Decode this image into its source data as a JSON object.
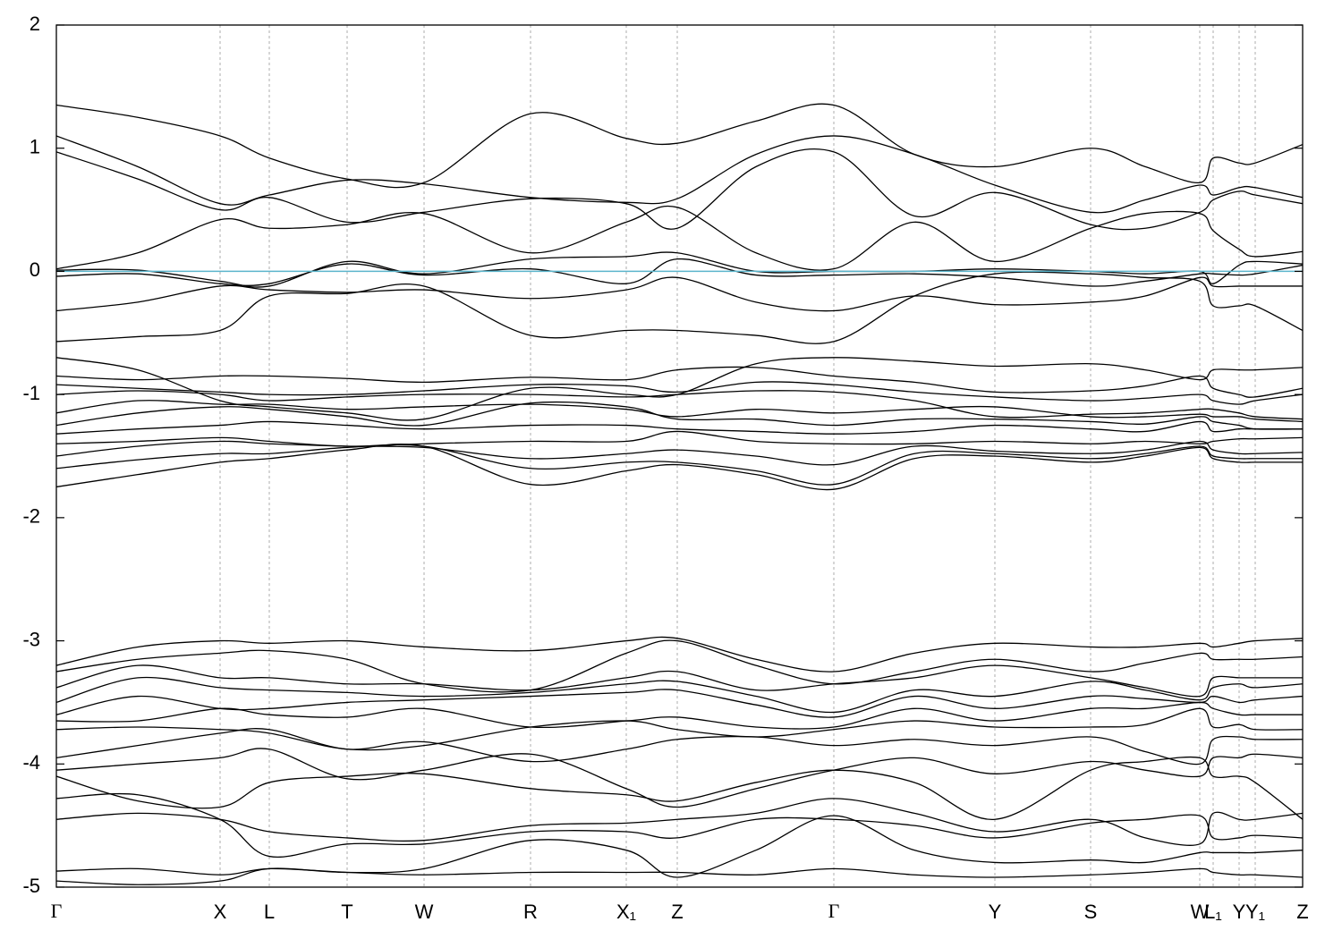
{
  "chart_data": {
    "type": "line",
    "xlim": [
      0,
      1393
    ],
    "ylim": [
      -5,
      2
    ],
    "yticks": [
      -5,
      -4,
      -3,
      -2,
      -1,
      0,
      1,
      2
    ],
    "xticks": [
      {
        "value": 0,
        "label": "Γ"
      },
      {
        "value": 183,
        "label": "X"
      },
      {
        "value": 238,
        "label": "L"
      },
      {
        "value": 325,
        "label": "T"
      },
      {
        "value": 411,
        "label": "W"
      },
      {
        "value": 530,
        "label": "R"
      },
      {
        "value": 637,
        "label": "X₁"
      },
      {
        "value": 694,
        "label": "Z"
      },
      {
        "value": 869,
        "label": "Γ"
      },
      {
        "value": 1049,
        "label": "Y"
      },
      {
        "value": 1156,
        "label": "S"
      },
      {
        "value": 1278,
        "label": "W"
      },
      {
        "value": 1293,
        "label": "L₁"
      },
      {
        "value": 1322,
        "label": "Y"
      },
      {
        "value": 1340,
        "label": "Y₁"
      },
      {
        "value": 1393,
        "label": "Z"
      }
    ],
    "xgrid": true,
    "line_color": "#000000",
    "hline": {
      "value": 0,
      "color": "#5bb5cc"
    },
    "x": [
      0,
      91,
      183,
      238,
      325,
      411,
      530,
      637,
      694,
      782,
      869,
      959,
      1049,
      1156,
      1217,
      1278,
      1293,
      1322,
      1340,
      1393
    ],
    "series": [
      {
        "values": [
          1.35,
          1.25,
          1.1,
          0.92,
          0.75,
          0.72,
          1.28,
          1.08,
          1.04,
          1.22,
          1.35,
          0.95,
          0.85,
          1.0,
          0.85,
          0.72,
          0.92,
          0.88,
          0.88,
          1.03
        ]
      },
      {
        "values": [
          1.1,
          0.85,
          0.55,
          0.62,
          0.74,
          0.71,
          0.6,
          0.56,
          0.59,
          0.95,
          1.1,
          0.95,
          0.7,
          0.48,
          0.58,
          0.7,
          0.62,
          0.68,
          0.68,
          0.6
        ]
      },
      {
        "values": [
          0.97,
          0.75,
          0.5,
          0.6,
          0.4,
          0.48,
          0.59,
          0.55,
          0.35,
          0.85,
          0.97,
          0.45,
          0.64,
          0.38,
          0.35,
          0.48,
          0.58,
          0.65,
          0.62,
          0.55
        ]
      },
      {
        "values": [
          0.02,
          0.15,
          0.42,
          0.35,
          0.38,
          0.47,
          0.15,
          0.4,
          0.52,
          0.15,
          0.02,
          0.4,
          0.08,
          0.35,
          0.47,
          0.47,
          0.33,
          0.18,
          0.12,
          0.16
        ]
      },
      {
        "values": [
          0.01,
          0.01,
          -0.08,
          -0.12,
          0.08,
          -0.02,
          0.1,
          0.12,
          0.15,
          0.0,
          0.0,
          0.0,
          0.02,
          0.0,
          -0.02,
          0.0,
          -0.1,
          0.05,
          0.08,
          0.06
        ]
      },
      {
        "values": [
          -0.04,
          -0.02,
          -0.1,
          -0.1,
          0.06,
          -0.03,
          0.02,
          -0.1,
          0.1,
          -0.03,
          -0.03,
          -0.02,
          -0.05,
          -0.12,
          -0.08,
          -0.02,
          -0.02,
          -0.03,
          -0.02,
          0.05
        ]
      },
      {
        "values": [
          -0.32,
          -0.25,
          -0.12,
          -0.15,
          -0.17,
          -0.15,
          -0.22,
          -0.15,
          -0.05,
          -0.25,
          -0.32,
          -0.2,
          -0.27,
          -0.25,
          -0.2,
          -0.05,
          -0.12,
          -0.12,
          -0.12,
          -0.12
        ]
      },
      {
        "values": [
          -0.57,
          -0.53,
          -0.48,
          -0.2,
          -0.18,
          -0.12,
          -0.52,
          -0.48,
          -0.48,
          -0.52,
          -0.57,
          -0.2,
          -0.02,
          -0.02,
          -0.05,
          -0.08,
          -0.28,
          -0.28,
          -0.28,
          -0.48
        ]
      },
      {
        "values": [
          -0.7,
          -0.8,
          -1.05,
          -1.1,
          -1.15,
          -1.2,
          -0.95,
          -1.0,
          -1.0,
          -0.75,
          -0.7,
          -0.73,
          -0.77,
          -0.75,
          -0.8,
          -0.88,
          -0.8,
          -0.8,
          -0.8,
          -0.78
        ]
      },
      {
        "values": [
          -0.85,
          -0.88,
          -0.85,
          -0.85,
          -0.87,
          -0.9,
          -0.86,
          -0.88,
          -0.8,
          -0.78,
          -0.85,
          -0.9,
          -0.98,
          -0.97,
          -0.93,
          -0.85,
          -0.95,
          -1.0,
          -1.02,
          -0.95
        ]
      },
      {
        "values": [
          -0.92,
          -0.95,
          -0.98,
          -1.0,
          -1.0,
          -0.97,
          -0.92,
          -0.93,
          -0.98,
          -0.9,
          -0.92,
          -0.98,
          -1.02,
          -1.05,
          -1.03,
          -1.0,
          -1.05,
          -1.08,
          -1.05,
          -1.0
        ]
      },
      {
        "values": [
          -1.0,
          -0.97,
          -1.0,
          -1.05,
          -1.02,
          -1.0,
          -1.0,
          -1.02,
          -1.0,
          -0.97,
          -0.98,
          -1.05,
          -1.18,
          -1.16,
          -1.15,
          -1.12,
          -1.12,
          -1.15,
          -1.18,
          -1.2
        ]
      },
      {
        "values": [
          -1.15,
          -1.05,
          -1.08,
          -1.08,
          -1.12,
          -1.1,
          -1.08,
          -1.12,
          -1.18,
          -1.12,
          -1.15,
          -1.12,
          -1.1,
          -1.18,
          -1.18,
          -1.16,
          -1.18,
          -1.18,
          -1.2,
          -1.22
        ]
      },
      {
        "values": [
          -1.25,
          -1.15,
          -1.1,
          -1.12,
          -1.18,
          -1.25,
          -1.07,
          -1.1,
          -1.2,
          -1.2,
          -1.25,
          -1.2,
          -1.2,
          -1.22,
          -1.24,
          -1.18,
          -1.22,
          -1.25,
          -1.28,
          -1.28
        ]
      },
      {
        "values": [
          -1.32,
          -1.28,
          -1.25,
          -1.22,
          -1.25,
          -1.28,
          -1.25,
          -1.25,
          -1.28,
          -1.3,
          -1.32,
          -1.3,
          -1.25,
          -1.28,
          -1.3,
          -1.22,
          -1.3,
          -1.28,
          -1.28,
          -1.28
        ]
      },
      {
        "values": [
          -1.4,
          -1.38,
          -1.35,
          -1.38,
          -1.42,
          -1.4,
          -1.38,
          -1.38,
          -1.3,
          -1.38,
          -1.4,
          -1.4,
          -1.38,
          -1.4,
          -1.38,
          -1.4,
          -1.38,
          -1.36,
          -1.36,
          -1.35
        ]
      },
      {
        "values": [
          -1.5,
          -1.42,
          -1.38,
          -1.4,
          -1.42,
          -1.43,
          -1.52,
          -1.48,
          -1.45,
          -1.5,
          -1.57,
          -1.42,
          -1.46,
          -1.48,
          -1.45,
          -1.38,
          -1.45,
          -1.48,
          -1.48,
          -1.47
        ]
      },
      {
        "values": [
          -1.6,
          -1.53,
          -1.48,
          -1.48,
          -1.43,
          -1.42,
          -1.6,
          -1.55,
          -1.55,
          -1.62,
          -1.73,
          -1.48,
          -1.48,
          -1.52,
          -1.48,
          -1.42,
          -1.5,
          -1.52,
          -1.52,
          -1.52
        ]
      },
      {
        "values": [
          -1.75,
          -1.65,
          -1.55,
          -1.52,
          -1.45,
          -1.42,
          -1.73,
          -1.62,
          -1.57,
          -1.65,
          -1.77,
          -1.52,
          -1.5,
          -1.55,
          -1.5,
          -1.43,
          -1.52,
          -1.55,
          -1.55,
          -1.55
        ]
      },
      {
        "values": [
          -3.2,
          -3.05,
          -3.0,
          -3.02,
          -3.0,
          -3.05,
          -3.08,
          -3.0,
          -2.98,
          -3.15,
          -3.25,
          -3.1,
          -3.02,
          -3.05,
          -3.05,
          -3.02,
          -3.05,
          -3.02,
          -3.0,
          -2.98
        ]
      },
      {
        "values": [
          -3.25,
          -3.15,
          -3.1,
          -3.08,
          -3.15,
          -3.35,
          -3.4,
          -3.1,
          -3.0,
          -3.2,
          -3.35,
          -3.25,
          -3.15,
          -3.25,
          -3.18,
          -3.1,
          -3.15,
          -3.15,
          -3.15,
          -3.13
        ]
      },
      {
        "values": [
          -3.38,
          -3.2,
          -3.3,
          -3.3,
          -3.35,
          -3.35,
          -3.4,
          -3.3,
          -3.25,
          -3.4,
          -3.35,
          -3.3,
          -3.2,
          -3.3,
          -3.38,
          -3.45,
          -3.3,
          -3.3,
          -3.3,
          -3.3
        ]
      },
      {
        "values": [
          -3.5,
          -3.3,
          -3.38,
          -3.4,
          -3.42,
          -3.45,
          -3.42,
          -3.35,
          -3.33,
          -3.45,
          -3.58,
          -3.4,
          -3.45,
          -3.33,
          -3.4,
          -3.48,
          -3.38,
          -3.35,
          -3.38,
          -3.35
        ]
      },
      {
        "values": [
          -3.6,
          -3.45,
          -3.55,
          -3.55,
          -3.5,
          -3.48,
          -3.45,
          -3.42,
          -3.4,
          -3.52,
          -3.62,
          -3.45,
          -3.55,
          -3.45,
          -3.47,
          -3.5,
          -3.45,
          -3.5,
          -3.48,
          -3.45
        ]
      },
      {
        "values": [
          -3.65,
          -3.65,
          -3.55,
          -3.6,
          -3.62,
          -3.55,
          -3.7,
          -3.65,
          -3.62,
          -3.7,
          -3.7,
          -3.55,
          -3.65,
          -3.55,
          -3.55,
          -3.5,
          -3.55,
          -3.6,
          -3.6,
          -3.6
        ]
      },
      {
        "values": [
          -3.72,
          -3.7,
          -3.72,
          -3.75,
          -3.88,
          -3.85,
          -3.7,
          -3.65,
          -3.72,
          -3.78,
          -3.72,
          -3.65,
          -3.7,
          -3.7,
          -3.68,
          -3.55,
          -3.7,
          -3.68,
          -3.72,
          -3.72
        ]
      },
      {
        "values": [
          -3.95,
          -3.85,
          -3.75,
          -3.72,
          -3.88,
          -3.82,
          -3.98,
          -3.88,
          -3.8,
          -3.78,
          -3.85,
          -3.8,
          -3.85,
          -3.78,
          -3.9,
          -4.0,
          -3.8,
          -3.78,
          -3.8,
          -3.8
        ]
      },
      {
        "values": [
          -4.05,
          -4.0,
          -3.95,
          -3.88,
          -4.12,
          -4.05,
          -3.92,
          -4.2,
          -4.35,
          -4.2,
          -4.05,
          -3.95,
          -4.08,
          -3.98,
          -4.05,
          -4.1,
          -3.95,
          -3.95,
          -3.92,
          -3.95
        ]
      },
      {
        "values": [
          -4.1,
          -4.3,
          -4.35,
          -4.15,
          -4.1,
          -4.08,
          -4.2,
          -4.25,
          -4.3,
          -4.15,
          -4.05,
          -4.15,
          -4.45,
          -4.05,
          -3.98,
          -3.95,
          -4.1,
          -4.1,
          -4.15,
          -4.45
        ]
      },
      {
        "values": [
          -4.45,
          -4.4,
          -4.45,
          -4.55,
          -4.6,
          -4.62,
          -4.5,
          -4.48,
          -4.45,
          -4.4,
          -4.28,
          -4.4,
          -4.55,
          -4.45,
          -4.6,
          -4.65,
          -4.4,
          -4.45,
          -4.45,
          -4.4
        ]
      },
      {
        "values": [
          -4.28,
          -4.25,
          -4.45,
          -4.75,
          -4.65,
          -4.65,
          -4.55,
          -4.55,
          -4.6,
          -4.45,
          -4.45,
          -4.5,
          -4.6,
          -4.48,
          -4.45,
          -4.42,
          -4.6,
          -4.6,
          -4.58,
          -4.6
        ]
      },
      {
        "values": [
          -4.87,
          -4.85,
          -4.9,
          -4.85,
          -4.88,
          -4.9,
          -4.88,
          -4.88,
          -4.88,
          -4.9,
          -4.85,
          -4.9,
          -4.92,
          -4.9,
          -4.88,
          -4.85,
          -4.88,
          -4.9,
          -4.9,
          -4.92
        ]
      },
      {
        "values": [
          -4.95,
          -4.98,
          -4.95,
          -4.85,
          -4.88,
          -4.85,
          -4.62,
          -4.7,
          -4.92,
          -4.7,
          -4.42,
          -4.7,
          -4.8,
          -4.78,
          -4.8,
          -4.72,
          -4.72,
          -4.72,
          -4.72,
          -4.7
        ]
      }
    ]
  }
}
